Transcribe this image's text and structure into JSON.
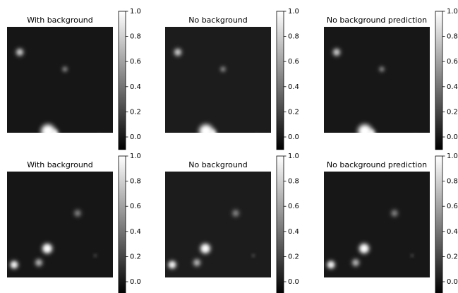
{
  "chart_data": [
    {
      "type": "image",
      "title": "With background",
      "colormap": [
        "#000000",
        "#ffffff"
      ],
      "ylim": [
        -0.1,
        1.0
      ],
      "yticks": [
        {
          "value": 0,
          "label": "0.0"
        },
        0.2,
        0.4,
        0.6,
        0.8,
        {
          "value": 1,
          "label": "1.0"
        }
      ]
    },
    {
      "type": "image",
      "title": "No background",
      "colormap": [
        "#000000",
        "#ffffff"
      ],
      "ylim": [
        -0.1,
        1.0
      ],
      "yticks": [
        {
          "value": 0,
          "label": "0.0"
        },
        0.2,
        0.4,
        0.6,
        0.8,
        {
          "value": 1,
          "label": "1.0"
        }
      ]
    },
    {
      "type": "image",
      "title": "No background prediction",
      "colormap": [
        "#000000",
        "#ffffff"
      ],
      "ylim": [
        -0.1,
        1.0
      ],
      "yticks": [
        {
          "value": 0,
          "label": "0.0"
        },
        0.2,
        0.4,
        0.6,
        0.8,
        {
          "value": 1,
          "label": "1.0"
        }
      ]
    },
    {
      "type": "image",
      "title": "With background",
      "colormap": [
        "#000000",
        "#ffffff"
      ],
      "ylim": [
        -0.1,
        1.0
      ],
      "yticks": [
        {
          "value": 0,
          "label": "0.0"
        },
        0.2,
        0.4,
        0.6,
        0.8,
        {
          "value": 1,
          "label": "1.0"
        }
      ]
    },
    {
      "type": "image",
      "title": "No background",
      "colormap": [
        "#000000",
        "#ffffff"
      ],
      "ylim": [
        -0.1,
        1.0
      ],
      "yticks": [
        {
          "value": 0,
          "label": "0.0"
        },
        0.2,
        0.4,
        0.6,
        0.8,
        {
          "value": 1,
          "label": "1.0"
        }
      ]
    },
    {
      "type": "image",
      "title": "No background prediction",
      "colormap": [
        "#000000",
        "#ffffff"
      ],
      "ylim": [
        -0.1,
        1.0
      ],
      "yticks": [
        {
          "value": 0,
          "label": "0.0"
        },
        0.2,
        0.4,
        0.6,
        0.8,
        {
          "value": 1,
          "label": "1.0"
        }
      ]
    }
  ]
}
